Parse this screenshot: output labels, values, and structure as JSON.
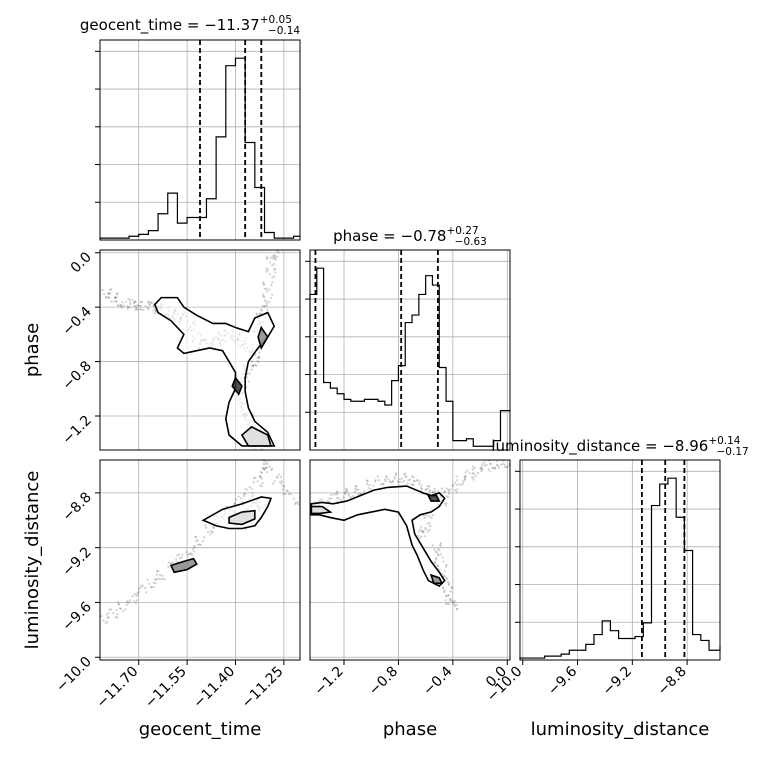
{
  "chart_data": {
    "type": "corner",
    "parameters": [
      "geocent_time",
      "phase",
      "luminosity_distance"
    ],
    "axis_labels": {
      "geocent_time": "geocent_time",
      "phase": "phase",
      "luminosity_distance": "luminosity_distance"
    },
    "ranges": {
      "geocent_time": [
        -11.82,
        -11.2
      ],
      "phase": [
        -1.45,
        0.02
      ],
      "luminosity_distance": [
        -10.02,
        -8.56
      ]
    },
    "ticks": {
      "geocent_time": [
        -11.7,
        -11.55,
        -11.4,
        -11.25
      ],
      "phase": [
        -1.2,
        -0.8,
        -0.4,
        0.0
      ],
      "luminosity_distance": [
        -10.0,
        -9.6,
        -9.2,
        -8.8
      ]
    },
    "tick_labels": {
      "geocent_time": [
        "−11.70",
        "−11.55",
        "−11.40",
        "−11.25"
      ],
      "phase_x": [
        "−1.2",
        "−0.8",
        "−0.4",
        "0.0"
      ],
      "phase_y": [
        "0.0",
        "−0.4",
        "−0.8",
        "−1.2"
      ],
      "luminosity_distance_x": [
        "−10.0",
        "−9.6",
        "−9.2",
        "−8.8"
      ],
      "luminosity_distance_y": [
        "−8.8",
        "−9.2",
        "−9.6",
        "−10.0"
      ]
    },
    "titles": [
      {
        "param": "geocent_time",
        "prefix": "geocent_time = −11.37",
        "sup": "+0.05",
        "sub": "−0.14"
      },
      {
        "param": "phase",
        "prefix": "phase = −0.78",
        "sup": "+0.27",
        "sub": "−0.63"
      },
      {
        "param": "luminosity_distance",
        "prefix": "luminosity_distance = −8.96",
        "sup": "+0.14",
        "sub": "−0.17"
      }
    ],
    "quantiles": {
      "geocent_time": [
        -11.51,
        -11.37,
        -11.32
      ],
      "phase": [
        -1.41,
        -0.78,
        -0.51
      ],
      "luminosity_distance": [
        -9.13,
        -8.96,
        -8.82
      ]
    },
    "histograms": {
      "geocent_time": {
        "edges": [
          -11.82,
          -11.79,
          -11.76,
          -11.73,
          -11.7,
          -11.67,
          -11.64,
          -11.61,
          -11.58,
          -11.55,
          -11.52,
          -11.49,
          -11.46,
          -11.43,
          -11.4,
          -11.37,
          -11.34,
          -11.31,
          -11.28,
          -11.25,
          -11.22,
          -11.2
        ],
        "counts": [
          1,
          1,
          1,
          2,
          3,
          5,
          14,
          25,
          9,
          12,
          12,
          22,
          55,
          93,
          97,
          52,
          28,
          4,
          1,
          1,
          2
        ]
      },
      "phase": {
        "edges": [
          -1.45,
          -1.4,
          -1.35,
          -1.3,
          -1.25,
          -1.2,
          -1.15,
          -1.1,
          -1.05,
          -1.0,
          -0.95,
          -0.9,
          -0.85,
          -0.8,
          -0.75,
          -0.7,
          -0.65,
          -0.6,
          -0.55,
          -0.5,
          -0.45,
          -0.4,
          -0.35,
          -0.3,
          -0.25,
          -0.2,
          -0.15,
          -0.1,
          -0.05,
          0.02
        ],
        "counts": [
          83,
          97,
          36,
          33,
          30,
          27,
          26,
          26,
          27,
          27,
          26,
          24,
          37,
          45,
          68,
          72,
          83,
          93,
          88,
          44,
          26,
          5,
          5,
          6,
          2,
          2,
          2,
          5,
          21
        ]
      },
      "luminosity_distance": {
        "edges": [
          -10.02,
          -9.96,
          -9.9,
          -9.84,
          -9.78,
          -9.72,
          -9.66,
          -9.6,
          -9.54,
          -9.48,
          -9.42,
          -9.36,
          -9.3,
          -9.24,
          -9.18,
          -9.12,
          -9.06,
          -9.0,
          -8.94,
          -8.88,
          -8.82,
          -8.76,
          -8.7,
          -8.64,
          -8.56
        ],
        "counts": [
          1,
          1,
          1,
          2,
          2,
          3,
          5,
          5,
          8,
          13,
          20,
          15,
          11,
          11,
          12,
          19,
          79,
          90,
          93,
          73,
          56,
          13,
          10,
          5,
          7
        ]
      }
    },
    "samples": {
      "geocent_time_vs_phase": [
        [
          -11.8,
          -0.3
        ],
        [
          -11.78,
          -0.33
        ],
        [
          -11.76,
          -0.36
        ],
        [
          -11.74,
          -0.37
        ],
        [
          -11.72,
          -0.38
        ],
        [
          -11.7,
          -0.39
        ],
        [
          -11.68,
          -0.39
        ],
        [
          -11.66,
          -0.4
        ],
        [
          -11.64,
          -0.41
        ],
        [
          -11.62,
          -0.43
        ],
        [
          -11.6,
          -0.45
        ],
        [
          -11.58,
          -0.46
        ],
        [
          -11.56,
          -0.48
        ],
        [
          -11.54,
          -0.54
        ],
        [
          -11.52,
          -0.62
        ],
        [
          -11.5,
          -0.67
        ],
        [
          -11.48,
          -0.67
        ],
        [
          -11.46,
          -0.65
        ],
        [
          -11.44,
          -0.62
        ],
        [
          -11.42,
          -0.6
        ],
        [
          -11.4,
          -0.62
        ],
        [
          -11.38,
          -0.66
        ],
        [
          -11.36,
          -0.7
        ],
        [
          -11.34,
          -0.74
        ],
        [
          -11.34,
          -0.8
        ],
        [
          -11.36,
          -0.86
        ],
        [
          -11.37,
          -0.92
        ],
        [
          -11.38,
          -1.0
        ],
        [
          -11.38,
          -1.08
        ],
        [
          -11.37,
          -1.16
        ],
        [
          -11.36,
          -1.22
        ],
        [
          -11.35,
          -1.3
        ],
        [
          -11.34,
          -1.36
        ],
        [
          -11.33,
          -1.42
        ],
        [
          -11.33,
          -0.55
        ],
        [
          -11.32,
          -0.48
        ],
        [
          -11.31,
          -0.42
        ],
        [
          -11.3,
          -0.34
        ],
        [
          -11.3,
          -0.25
        ],
        [
          -11.29,
          -0.15
        ],
        [
          -11.29,
          -0.06
        ],
        [
          -11.28,
          -0.01
        ]
      ],
      "geocent_time_vs_luminosity_distance": [
        [
          -11.81,
          -9.72
        ],
        [
          -11.78,
          -9.68
        ],
        [
          -11.75,
          -9.63
        ],
        [
          -11.72,
          -9.57
        ],
        [
          -11.69,
          -9.51
        ],
        [
          -11.66,
          -9.46
        ],
        [
          -11.63,
          -9.4
        ],
        [
          -11.6,
          -9.34
        ],
        [
          -11.57,
          -9.28
        ],
        [
          -11.54,
          -9.22
        ],
        [
          -11.51,
          -9.15
        ],
        [
          -11.48,
          -9.07
        ],
        [
          -11.45,
          -9.0
        ],
        [
          -11.42,
          -8.93
        ],
        [
          -11.39,
          -8.86
        ],
        [
          -11.36,
          -8.79
        ],
        [
          -11.33,
          -8.72
        ],
        [
          -11.31,
          -8.65
        ],
        [
          -11.3,
          -8.6
        ],
        [
          -11.3,
          -8.56
        ],
        [
          -11.27,
          -8.7
        ],
        [
          -11.24,
          -8.78
        ],
        [
          -11.21,
          -8.85
        ],
        [
          -11.38,
          -9.03
        ],
        [
          -11.4,
          -8.98
        ],
        [
          -11.36,
          -8.95
        ],
        [
          -11.34,
          -8.9
        ],
        [
          -11.32,
          -8.88
        ]
      ],
      "phase_vs_luminosity_distance": [
        [
          -1.43,
          -8.92
        ],
        [
          -1.4,
          -8.9
        ],
        [
          -1.35,
          -8.88
        ],
        [
          -1.28,
          -8.84
        ],
        [
          -1.22,
          -8.82
        ],
        [
          -1.15,
          -8.8
        ],
        [
          -1.08,
          -8.78
        ],
        [
          -1.0,
          -8.74
        ],
        [
          -0.92,
          -8.71
        ],
        [
          -0.85,
          -8.69
        ],
        [
          -0.78,
          -8.69
        ],
        [
          -0.72,
          -8.71
        ],
        [
          -0.66,
          -8.74
        ],
        [
          -0.6,
          -8.78
        ],
        [
          -0.56,
          -8.8
        ],
        [
          -0.52,
          -8.82
        ],
        [
          -0.48,
          -8.86
        ],
        [
          -0.46,
          -8.8
        ],
        [
          -0.4,
          -8.76
        ],
        [
          -0.34,
          -8.71
        ],
        [
          -0.28,
          -8.67
        ],
        [
          -0.22,
          -8.64
        ],
        [
          -0.16,
          -8.61
        ],
        [
          -0.1,
          -8.59
        ],
        [
          -0.04,
          -8.58
        ],
        [
          0.0,
          -8.58
        ],
        [
          -0.52,
          -9.2
        ],
        [
          -0.5,
          -9.28
        ],
        [
          -0.48,
          -9.36
        ],
        [
          -0.46,
          -9.44
        ],
        [
          -0.44,
          -9.52
        ],
        [
          -0.42,
          -9.58
        ],
        [
          -0.4,
          -9.62
        ],
        [
          -0.6,
          -9.05
        ],
        [
          -0.62,
          -9.1
        ],
        [
          -0.58,
          -8.95
        ]
      ]
    },
    "contours": {
      "geocent_time_vs_phase": [
        [
          [
            -11.63,
            -0.33
          ],
          [
            -11.58,
            -0.33
          ],
          [
            -11.56,
            -0.4
          ],
          [
            -11.52,
            -0.46
          ],
          [
            -11.47,
            -0.52
          ],
          [
            -11.43,
            -0.52
          ],
          [
            -11.4,
            -0.55
          ],
          [
            -11.36,
            -0.58
          ],
          [
            -11.34,
            -0.48
          ],
          [
            -11.3,
            -0.44
          ],
          [
            -11.28,
            -0.54
          ],
          [
            -11.3,
            -0.62
          ],
          [
            -11.33,
            -0.7
          ],
          [
            -11.36,
            -0.8
          ],
          [
            -11.37,
            -0.92
          ],
          [
            -11.37,
            -1.02
          ],
          [
            -11.36,
            -1.14
          ],
          [
            -11.34,
            -1.24
          ],
          [
            -11.3,
            -1.32
          ],
          [
            -11.28,
            -1.42
          ],
          [
            -11.38,
            -1.42
          ],
          [
            -11.42,
            -1.34
          ],
          [
            -11.43,
            -1.22
          ],
          [
            -11.42,
            -1.1
          ],
          [
            -11.4,
            -1.0
          ],
          [
            -11.4,
            -0.88
          ],
          [
            -11.42,
            -0.8
          ],
          [
            -11.44,
            -0.72
          ],
          [
            -11.48,
            -0.7
          ],
          [
            -11.52,
            -0.72
          ],
          [
            -11.56,
            -0.74
          ],
          [
            -11.58,
            -0.7
          ],
          [
            -11.56,
            -0.6
          ],
          [
            -11.6,
            -0.5
          ],
          [
            -11.64,
            -0.44
          ],
          [
            -11.65,
            -0.38
          ],
          [
            -11.63,
            -0.33
          ]
        ],
        [
          [
            -11.35,
            -1.28
          ],
          [
            -11.3,
            -1.34
          ],
          [
            -11.29,
            -1.42
          ],
          [
            -11.36,
            -1.42
          ],
          [
            -11.38,
            -1.34
          ],
          [
            -11.35,
            -1.28
          ]
        ],
        [
          [
            -11.32,
            -0.55
          ],
          [
            -11.3,
            -0.62
          ],
          [
            -11.32,
            -0.7
          ],
          [
            -11.33,
            -0.62
          ],
          [
            -11.32,
            -0.55
          ]
        ],
        [
          [
            -11.4,
            -0.92
          ],
          [
            -11.38,
            -0.98
          ],
          [
            -11.39,
            -1.04
          ],
          [
            -11.41,
            -0.98
          ],
          [
            -11.4,
            -0.92
          ]
        ]
      ],
      "geocent_time_vs_luminosity_distance": [
        [
          [
            -11.5,
            -9.0
          ],
          [
            -11.44,
            -8.92
          ],
          [
            -11.38,
            -8.88
          ],
          [
            -11.32,
            -8.83
          ],
          [
            -11.29,
            -8.84
          ],
          [
            -11.3,
            -8.9
          ],
          [
            -11.32,
            -8.98
          ],
          [
            -11.34,
            -9.04
          ],
          [
            -11.38,
            -9.06
          ],
          [
            -11.42,
            -9.06
          ],
          [
            -11.46,
            -9.04
          ],
          [
            -11.5,
            -9.0
          ]
        ],
        [
          [
            -11.42,
            -8.98
          ],
          [
            -11.38,
            -8.94
          ],
          [
            -11.34,
            -8.93
          ],
          [
            -11.34,
            -8.99
          ],
          [
            -11.38,
            -9.03
          ],
          [
            -11.42,
            -9.02
          ],
          [
            -11.42,
            -8.98
          ]
        ],
        [
          [
            -11.6,
            -9.33
          ],
          [
            -11.56,
            -9.3
          ],
          [
            -11.53,
            -9.28
          ],
          [
            -11.52,
            -9.32
          ],
          [
            -11.55,
            -9.36
          ],
          [
            -11.59,
            -9.38
          ],
          [
            -11.6,
            -9.33
          ]
        ]
      ],
      "phase_vs_luminosity_distance": [
        [
          [
            -1.44,
            -8.88
          ],
          [
            -1.36,
            -8.87
          ],
          [
            -1.28,
            -8.88
          ],
          [
            -1.18,
            -8.86
          ],
          [
            -1.08,
            -8.82
          ],
          [
            -0.98,
            -8.78
          ],
          [
            -0.88,
            -8.76
          ],
          [
            -0.74,
            -8.75
          ],
          [
            -0.62,
            -8.8
          ],
          [
            -0.56,
            -8.82
          ],
          [
            -0.5,
            -8.8
          ],
          [
            -0.46,
            -8.84
          ],
          [
            -0.5,
            -8.9
          ],
          [
            -0.56,
            -8.94
          ],
          [
            -0.64,
            -8.96
          ],
          [
            -0.7,
            -9.0
          ],
          [
            -0.68,
            -9.1
          ],
          [
            -0.62,
            -9.2
          ],
          [
            -0.56,
            -9.3
          ],
          [
            -0.5,
            -9.38
          ],
          [
            -0.46,
            -9.44
          ],
          [
            -0.5,
            -9.48
          ],
          [
            -0.58,
            -9.44
          ],
          [
            -0.62,
            -9.36
          ],
          [
            -0.66,
            -9.26
          ],
          [
            -0.7,
            -9.18
          ],
          [
            -0.74,
            -9.04
          ],
          [
            -0.8,
            -8.94
          ],
          [
            -0.9,
            -8.92
          ],
          [
            -1.0,
            -8.94
          ],
          [
            -1.1,
            -8.96
          ],
          [
            -1.2,
            -9.0
          ],
          [
            -1.3,
            -8.98
          ],
          [
            -1.38,
            -8.96
          ],
          [
            -1.44,
            -8.96
          ],
          [
            -1.44,
            -8.88
          ]
        ],
        [
          [
            -1.44,
            -8.9
          ],
          [
            -1.36,
            -8.9
          ],
          [
            -1.3,
            -8.94
          ],
          [
            -1.38,
            -8.95
          ],
          [
            -1.44,
            -8.95
          ],
          [
            -1.44,
            -8.9
          ]
        ],
        [
          [
            -0.56,
            -9.4
          ],
          [
            -0.5,
            -9.42
          ],
          [
            -0.48,
            -9.46
          ],
          [
            -0.54,
            -9.46
          ],
          [
            -0.56,
            -9.4
          ]
        ],
        [
          [
            -0.58,
            -8.82
          ],
          [
            -0.52,
            -8.82
          ],
          [
            -0.5,
            -8.86
          ],
          [
            -0.56,
            -8.86
          ],
          [
            -0.58,
            -8.82
          ]
        ]
      ]
    }
  }
}
